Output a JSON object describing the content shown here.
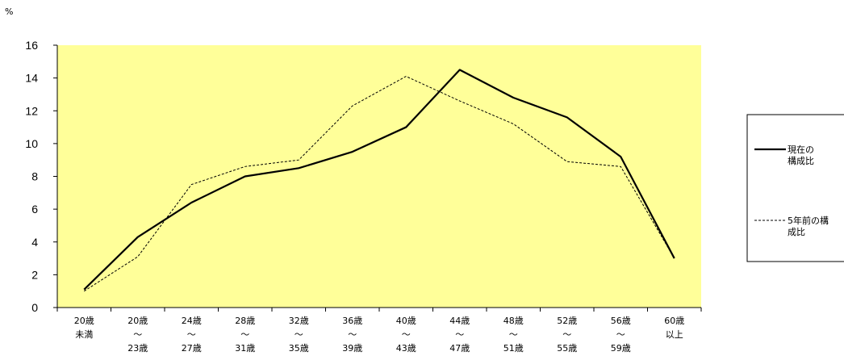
{
  "chart_data": {
    "type": "line",
    "ylabel": "%",
    "ylim": [
      0,
      16
    ],
    "yticks": [
      "0",
      "2",
      "4",
      "6",
      "8",
      "10",
      "12",
      "14",
      "16"
    ],
    "categories": [
      [
        "20歳",
        "未満"
      ],
      [
        "20歳",
        "～",
        "23歳"
      ],
      [
        "24歳",
        "～",
        "27歳"
      ],
      [
        "28歳",
        "～",
        "31歳"
      ],
      [
        "32歳",
        "～",
        "35歳"
      ],
      [
        "36歳",
        "～",
        "39歳"
      ],
      [
        "40歳",
        "～",
        "43歳"
      ],
      [
        "44歳",
        "～",
        "47歳"
      ],
      [
        "48歳",
        "～",
        "51歳"
      ],
      [
        "52歳",
        "～",
        "55歳"
      ],
      [
        "56歳",
        "～",
        "59歳"
      ],
      [
        "60歳",
        "以上"
      ]
    ],
    "series": [
      {
        "name": [
          "現在の",
          "構成比"
        ],
        "style": "solid",
        "values": [
          1.1,
          4.3,
          6.4,
          8.0,
          8.5,
          9.5,
          11.0,
          14.5,
          12.8,
          11.6,
          9.2,
          3.0
        ]
      },
      {
        "name": [
          "5年前の構",
          "成比"
        ],
        "style": "dashed",
        "values": [
          1.0,
          3.1,
          7.5,
          8.6,
          9.0,
          12.3,
          14.1,
          12.6,
          11.2,
          8.9,
          8.6,
          3.0
        ]
      }
    ],
    "plot_background": "#ffff99",
    "line_color": "#000000",
    "legend_position": "right",
    "grid": false
  }
}
